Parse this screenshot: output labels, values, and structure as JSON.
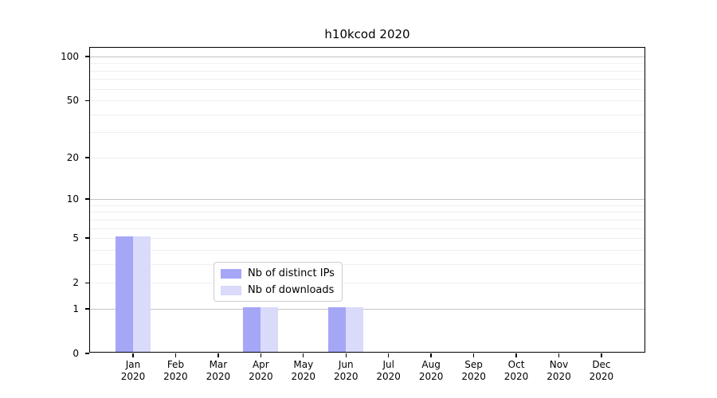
{
  "chart_data": {
    "type": "bar",
    "title": "h10kcod 2020",
    "categories": [
      "Jan",
      "Feb",
      "Mar",
      "Apr",
      "May",
      "Jun",
      "Jul",
      "Aug",
      "Sep",
      "Oct",
      "Nov",
      "Dec"
    ],
    "category_year": "2020",
    "series": [
      {
        "name": "Nb of distinct IPs",
        "color": "#a6a6f7",
        "values": [
          5,
          0,
          0,
          1,
          0,
          1,
          0,
          0,
          0,
          0,
          0,
          0
        ]
      },
      {
        "name": "Nb of downloads",
        "color": "#dadafb",
        "values": [
          5,
          0,
          0,
          1,
          0,
          1,
          0,
          0,
          0,
          0,
          0,
          0
        ]
      }
    ],
    "yscale": "log1p",
    "ylim": [
      0,
      115
    ],
    "yticks": [
      0,
      1,
      2,
      5,
      10,
      20,
      50,
      100
    ],
    "major_gridlines": [
      1,
      10,
      100
    ],
    "minor_gridlines": [
      2,
      3,
      4,
      5,
      6,
      7,
      8,
      9,
      20,
      30,
      40,
      50,
      60,
      70,
      80,
      90
    ],
    "grid": true,
    "legend_position": "lower center",
    "xlabel": "",
    "ylabel": ""
  }
}
